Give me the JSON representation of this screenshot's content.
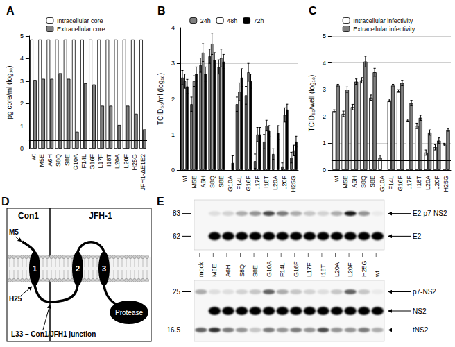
{
  "chart_data": [
    {
      "type": "bar",
      "title": "A",
      "categories": [
        "wt",
        "M5E",
        "A6H",
        "S8Q",
        "S8E",
        "G10A",
        "F14L",
        "G16F",
        "L17F",
        "I18T",
        "L20A",
        "L20F",
        "H25G",
        "JFH1-ΔE1E2"
      ],
      "ylabel": "pg core/ml (log₁₀)",
      "ylim": [
        0,
        5
      ],
      "yticks": [
        0,
        1,
        2,
        3,
        4,
        5
      ],
      "grid": false,
      "legend": "top",
      "detection_limit": 0.35,
      "series": [
        {
          "name": "Intracellular core",
          "color": "#ffffff",
          "values": [
            4.85,
            4.85,
            4.85,
            4.85,
            4.85,
            4.85,
            4.85,
            4.85,
            4.85,
            4.85,
            4.85,
            4.85,
            4.85,
            4.85
          ]
        },
        {
          "name": "Extracellular core",
          "color": "#808080",
          "values": [
            3.05,
            3.1,
            3.1,
            3.35,
            3.1,
            0.75,
            2.9,
            2.85,
            1.9,
            1.9,
            1.05,
            1.9,
            1.55,
            0.85
          ]
        }
      ]
    },
    {
      "type": "bar",
      "title": "B",
      "categories": [
        "wt",
        "M5E",
        "A6H",
        "S8Q",
        "S8E",
        "G10A",
        "F14L",
        "G16F",
        "L17F",
        "I18T",
        "L20A",
        "L20F",
        "H25G"
      ],
      "ylabel": "TCID₅₀/ml (log₁₀)",
      "ylim": [
        0,
        4
      ],
      "yticks": [
        0,
        1,
        2,
        3,
        4
      ],
      "grid": true,
      "legend": "top",
      "detection_limit": 0.35,
      "series": [
        {
          "name": "24h",
          "color": "#808080",
          "values": [
            2.6,
            1.85,
            2.95,
            3.2,
            2.9,
            null,
            1.85,
            2.1,
            0.25,
            0.8,
            0.45,
            0.1,
            0.35
          ],
          "errors": [
            0.2,
            0.2,
            0.2,
            0.2,
            0.2,
            null,
            0.2,
            0.25,
            0.2,
            0.2,
            0.15,
            0.1,
            0.15
          ]
        },
        {
          "name": "48h",
          "color": "#ffffff",
          "values": [
            2.5,
            2.5,
            3.3,
            3.55,
            3.15,
            null,
            2.2,
            2.75,
            1.0,
            1.25,
            null,
            1.55,
            0.55
          ],
          "errors": [
            0.2,
            0.15,
            0.25,
            0.3,
            0.25,
            null,
            0.25,
            0.25,
            0.2,
            0.15,
            null,
            0.2,
            0.15
          ]
        },
        {
          "name": "72h",
          "color": "#000000",
          "values": [
            2.35,
            2.7,
            2.7,
            3.1,
            3.05,
            0.2,
            2.6,
            2.5,
            1.0,
            1.1,
            1.05,
            1.7,
            0.8
          ],
          "errors": [
            0.2,
            0.2,
            0.2,
            0.2,
            0.2,
            0.2,
            0.25,
            0.2,
            0.2,
            0.15,
            0.2,
            0.15,
            0.15
          ]
        }
      ]
    },
    {
      "type": "bar",
      "title": "C",
      "categories": [
        "wt",
        "M5E",
        "A6H",
        "S8Q",
        "S8E",
        "G10A",
        "F14L",
        "G16F",
        "L17F",
        "I18T",
        "L20A",
        "L20F",
        "H25G"
      ],
      "ylabel": "TCID₅₀/well (log₁₀)",
      "ylim": [
        0,
        5
      ],
      "yticks": [
        0,
        1,
        2,
        3,
        4,
        5
      ],
      "grid": true,
      "legend": "top",
      "detection_limit": 0.35,
      "series": [
        {
          "name": "Intracellular infectivity",
          "color": "#ffffff",
          "values": [
            2.2,
            2.1,
            2.35,
            3.35,
            2.7,
            0.45,
            2.6,
            2.95,
            1.85,
            1.65,
            0.65,
            0.85,
            0.95
          ],
          "errors": [
            0.05,
            0.1,
            0.1,
            0.1,
            0.1,
            0.1,
            0.05,
            0.05,
            0.05,
            0.1,
            0.1,
            0.1,
            0.05
          ]
        },
        {
          "name": "Extracellular infectivity",
          "color": "#808080",
          "values": [
            3.15,
            3.0,
            3.3,
            4.05,
            3.65,
            null,
            3.15,
            3.25,
            2.5,
            1.95,
            1.4,
            1.1,
            1.5
          ],
          "errors": [
            0.05,
            0.1,
            0.1,
            0.2,
            0.15,
            null,
            0.05,
            0.1,
            0.1,
            0.1,
            0.1,
            0.1,
            0.05
          ]
        }
      ]
    }
  ],
  "diagram": {
    "label": "D",
    "regions": [
      "Con1",
      "JFH-1"
    ],
    "helices": [
      "1",
      "2",
      "3"
    ],
    "domain": "Protease",
    "annotations": {
      "start": "M5",
      "helix_end": "H25",
      "junction": "L33 – Con1/JFH1 junction"
    }
  },
  "blot": {
    "label": "E",
    "lanes": [
      "mock",
      "M5E",
      "A6H",
      "S8Q",
      "S8E",
      "G10A",
      "F14L",
      "G16F",
      "L17F",
      "I18T",
      "L20A",
      "L20F",
      "H25G",
      "wt"
    ],
    "panels": [
      {
        "markers": [
          83,
          62
        ],
        "bands": [
          {
            "name": "E2-p7-NS2",
            "intensity": [
              0,
              0.1,
              0.15,
              0.3,
              0.4,
              0.7,
              0.5,
              0.3,
              0.2,
              0.15,
              0.3,
              0.9,
              0.4,
              0.05
            ]
          },
          {
            "name": "E2",
            "intensity": [
              0,
              1,
              1,
              1,
              1,
              1,
              1,
              1,
              1,
              1,
              1,
              1,
              1,
              1
            ]
          }
        ]
      },
      {
        "markers": [
          25,
          16.5
        ],
        "bands": [
          {
            "name": "p7-NS2",
            "intensity": [
              0.3,
              0.1,
              0.1,
              0.15,
              0.2,
              0.6,
              0.3,
              0.2,
              0.15,
              0.1,
              0.2,
              0.6,
              0.2,
              0.05
            ]
          },
          {
            "name": "NS2",
            "intensity": [
              0,
              1,
              1,
              1,
              1,
              1,
              1,
              1,
              1,
              1,
              1,
              1,
              1,
              1
            ]
          },
          {
            "name": "tNS2",
            "intensity": [
              0.6,
              0.8,
              0.5,
              0.4,
              0.2,
              0.5,
              0.4,
              0.5,
              0.4,
              0.7,
              0.4,
              0.4,
              0.5,
              0.3
            ]
          }
        ]
      }
    ]
  }
}
